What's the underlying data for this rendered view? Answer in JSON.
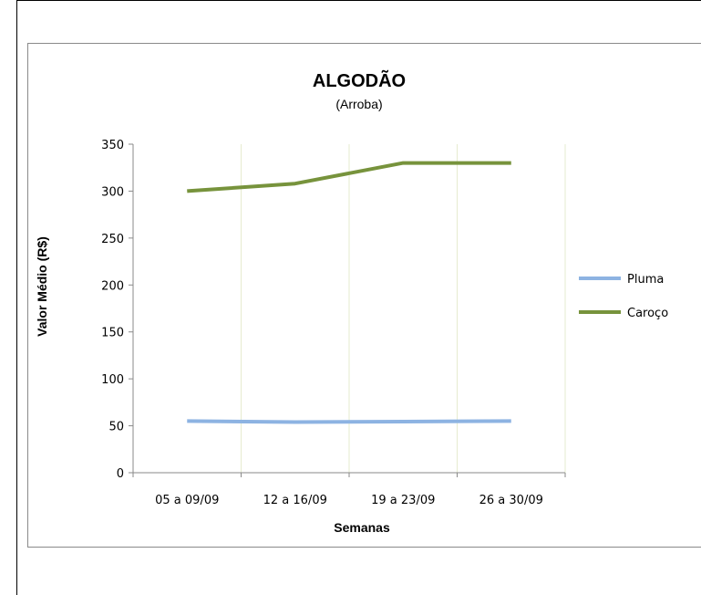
{
  "chart_data": {
    "type": "line",
    "title": "ALGODÃO",
    "subtitle": "(Arroba)",
    "xlabel": "Semanas",
    "ylabel": "Valor Médio (R$)",
    "categories": [
      "05 a 09/09",
      "12 a 16/09",
      "19 a 23/09",
      "26 a 30/09"
    ],
    "ylim": [
      0,
      350
    ],
    "yticks": [
      0,
      50,
      100,
      150,
      200,
      250,
      300,
      350
    ],
    "grid": "vertical",
    "legend_position": "right",
    "series": [
      {
        "name": "Pluma",
        "color": "#8db3e2",
        "values": [
          55,
          54,
          54.5,
          55
        ]
      },
      {
        "name": "Caroço",
        "color": "#77933c",
        "values": [
          300,
          308,
          330,
          330
        ]
      }
    ]
  }
}
